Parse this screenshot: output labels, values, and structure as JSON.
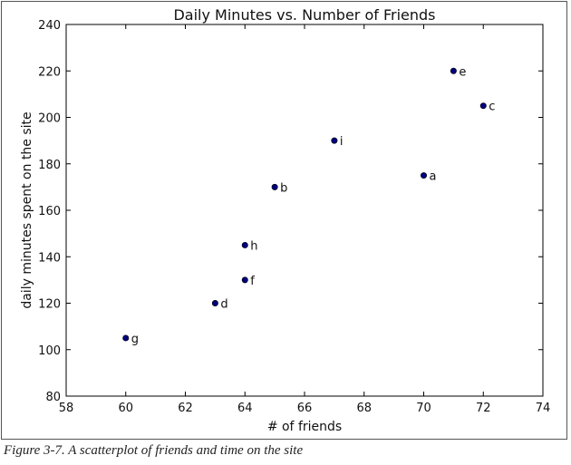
{
  "caption": "Figure 3-7. A scatterplot of friends and time on the site",
  "colors": {
    "marker": "#00007f",
    "axis": "#000000"
  },
  "chart_data": {
    "type": "scatter",
    "title": "Daily Minutes vs. Number of Friends",
    "xlabel": "# of friends",
    "ylabel": "daily minutes spent on the site",
    "xlim": [
      58,
      74
    ],
    "ylim": [
      80,
      240
    ],
    "xticks": [
      58,
      60,
      62,
      64,
      66,
      68,
      70,
      72,
      74
    ],
    "yticks": [
      80,
      100,
      120,
      140,
      160,
      180,
      200,
      220,
      240
    ],
    "grid": false,
    "points": [
      {
        "label": "a",
        "x": 70,
        "y": 175
      },
      {
        "label": "b",
        "x": 65,
        "y": 170
      },
      {
        "label": "c",
        "x": 72,
        "y": 205
      },
      {
        "label": "d",
        "x": 63,
        "y": 120
      },
      {
        "label": "e",
        "x": 71,
        "y": 220
      },
      {
        "label": "f",
        "x": 64,
        "y": 130
      },
      {
        "label": "g",
        "x": 60,
        "y": 105
      },
      {
        "label": "h",
        "x": 64,
        "y": 145
      },
      {
        "label": "i",
        "x": 67,
        "y": 190
      }
    ]
  }
}
